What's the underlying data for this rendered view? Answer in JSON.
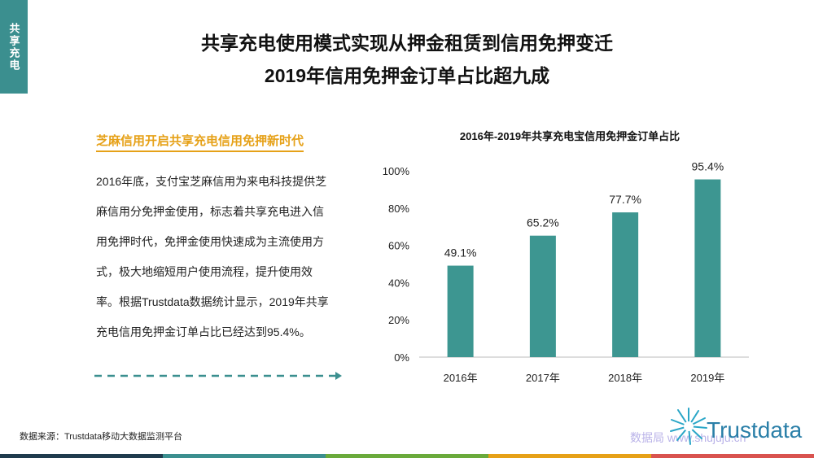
{
  "side_tab": {
    "label": "共享充电"
  },
  "header": {
    "title_line1": "共享充电使用模式实现从押金租赁到信用免押变迁",
    "title_line2": "2019年信用免押金订单占比超九成"
  },
  "left_panel": {
    "heading": "芝麻信用开启共享充电信用免押新时代",
    "paragraph": "2016年底，支付宝芝麻信用为来电科技提供芝麻信用分免押金使用，标志着共享充电进入信用免押时代，免押金使用快速成为主流使用方式，极大地缩短用户使用流程，提升使用效率。根据Trustdata数据统计显示，2019年共享充电信用免押金订单占比已经达到95.4%。"
  },
  "chart_data": {
    "type": "bar",
    "title": "2016年-2019年共享充电宝信用免押金订单占比",
    "categories": [
      "2016年",
      "2017年",
      "2018年",
      "2019年"
    ],
    "values": [
      49.1,
      65.2,
      77.7,
      95.4
    ],
    "value_labels": [
      "49.1%",
      "65.2%",
      "77.7%",
      "95.4%"
    ],
    "ylim": [
      0,
      100
    ],
    "yticks": [
      "0%",
      "20%",
      "40%",
      "60%",
      "80%",
      "100%"
    ],
    "bar_color": "#3d9691",
    "grid": false,
    "legend": "none"
  },
  "footer": {
    "source": "数据来源：Trustdata移动大数据监测平台",
    "watermark": "数据局 www.shujuju.cn",
    "logo_text": "Trustdata"
  },
  "colors": {
    "accent_teal": "#3b8f8f",
    "heading_orange": "#e6a118",
    "bottom_bar": [
      "#1f3b4d",
      "#3b8f8f",
      "#6aaa3b",
      "#e6a118",
      "#d9534f"
    ]
  }
}
